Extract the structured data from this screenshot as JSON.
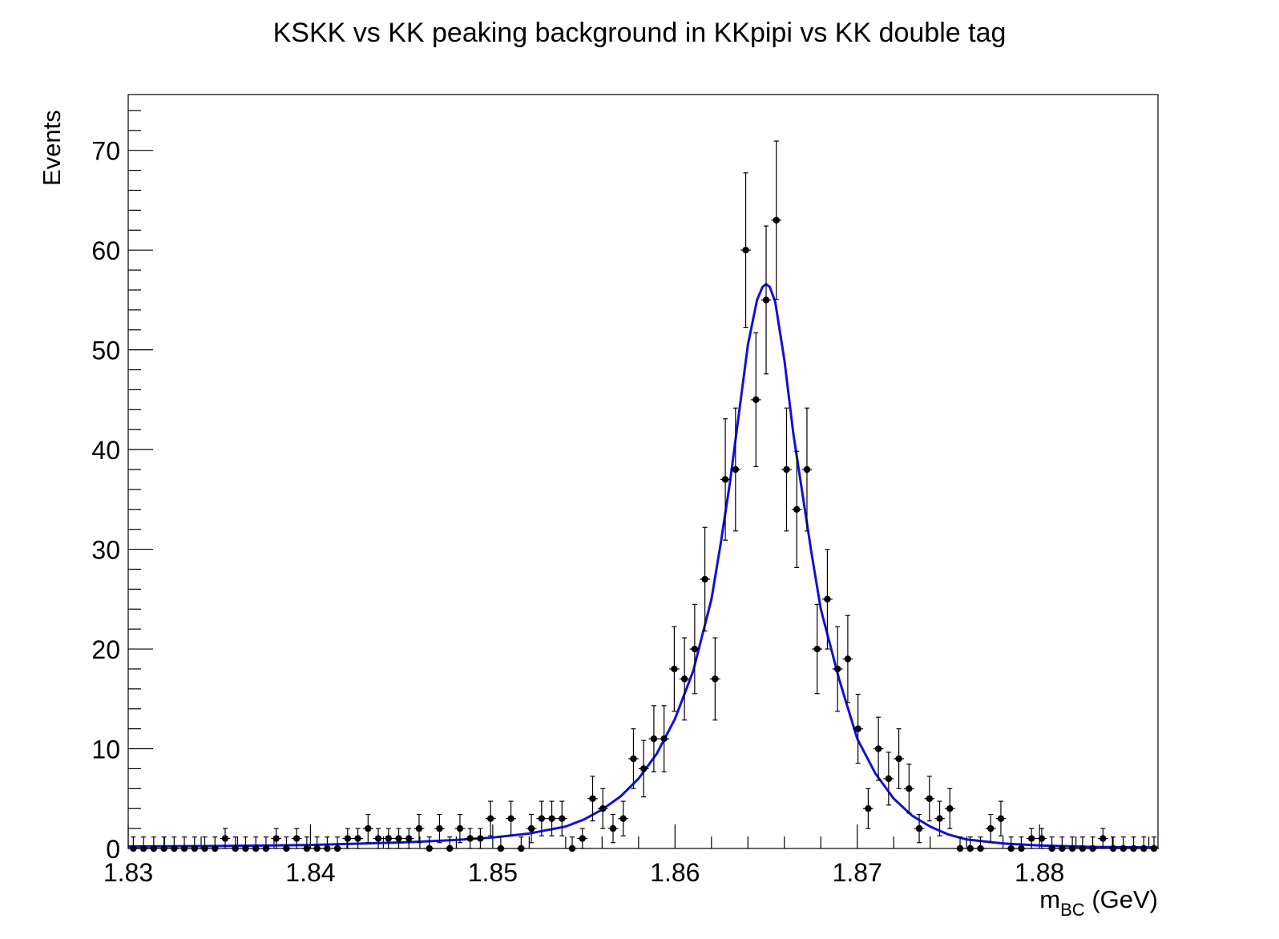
{
  "chart_data": {
    "type": "scatter",
    "title": "KSKK vs KK peaking background in KKpipi vs KK double tag",
    "xlabel": "m",
    "xlabel_subscript": "BC",
    "xlabel_unit": "(GeV)",
    "ylabel": "Events",
    "xlim": [
      1.83,
      1.8865
    ],
    "ylim": [
      0,
      75.6
    ],
    "x_ticks": [
      1.83,
      1.84,
      1.85,
      1.86,
      1.87,
      1.88
    ],
    "x_tick_labels": [
      "1.83",
      "1.84",
      "1.85",
      "1.86",
      "1.87",
      "1.88"
    ],
    "y_ticks": [
      0,
      10,
      20,
      30,
      40,
      50,
      60,
      70
    ],
    "y_tick_labels": [
      "0",
      "10",
      "20",
      "30",
      "40",
      "50",
      "60",
      "70"
    ],
    "bin_width": 0.00056,
    "grid": false,
    "legend": "none",
    "series": [
      {
        "kind": "data-points",
        "color": "#000000",
        "x": [
          1.83028,
          1.83084,
          1.8314,
          1.83196,
          1.83252,
          1.83308,
          1.83364,
          1.8342,
          1.83476,
          1.83532,
          1.83588,
          1.83644,
          1.837,
          1.83756,
          1.83812,
          1.83868,
          1.83924,
          1.8398,
          1.84036,
          1.84092,
          1.84148,
          1.84204,
          1.8426,
          1.84316,
          1.84372,
          1.84428,
          1.84484,
          1.8454,
          1.84596,
          1.84652,
          1.84708,
          1.84764,
          1.8482,
          1.84876,
          1.84932,
          1.84988,
          1.85044,
          1.851,
          1.85156,
          1.85212,
          1.85268,
          1.85324,
          1.8538,
          1.85436,
          1.85492,
          1.85548,
          1.85604,
          1.8566,
          1.85716,
          1.85772,
          1.85828,
          1.85884,
          1.8594,
          1.85996,
          1.86052,
          1.86108,
          1.86164,
          1.8622,
          1.86276,
          1.86332,
          1.86388,
          1.86444,
          1.865,
          1.86556,
          1.86612,
          1.86668,
          1.86724,
          1.8678,
          1.86836,
          1.86892,
          1.86948,
          1.87004,
          1.8706,
          1.87116,
          1.87172,
          1.87228,
          1.87284,
          1.8734,
          1.87396,
          1.87452,
          1.87508,
          1.87564,
          1.8762,
          1.87676,
          1.87732,
          1.87788,
          1.87844,
          1.879,
          1.87956,
          1.88012,
          1.88068,
          1.88124,
          1.8818,
          1.88236,
          1.88292,
          1.88348,
          1.88404,
          1.8846,
          1.88516,
          1.88572,
          1.88628
        ],
        "y": [
          0,
          0,
          0,
          0,
          0,
          0,
          0,
          0,
          0,
          1,
          0,
          0,
          0,
          0,
          1,
          0,
          1,
          0,
          0,
          0,
          0,
          1,
          1,
          2,
          1,
          1,
          1,
          1,
          2,
          0,
          2,
          0,
          2,
          1,
          1,
          3,
          0,
          3,
          0,
          2,
          3,
          3,
          3,
          0,
          1,
          5,
          4,
          2,
          3,
          9,
          8,
          11,
          11,
          18,
          17,
          20,
          27,
          17,
          37,
          38,
          60,
          45,
          55,
          63,
          38,
          34,
          38,
          20,
          25,
          18,
          19,
          12,
          4,
          10,
          7,
          9,
          6,
          2,
          5,
          3,
          4,
          0,
          0,
          0,
          2,
          3,
          0,
          0,
          1,
          1,
          0,
          0,
          0,
          0,
          0,
          1,
          0,
          0,
          0,
          0,
          0
        ]
      },
      {
        "kind": "fit-curve",
        "color": "#1010d8",
        "x": [
          1.83,
          1.835,
          1.84,
          1.845,
          1.848,
          1.85,
          1.852,
          1.854,
          1.855,
          1.856,
          1.857,
          1.858,
          1.859,
          1.86,
          1.861,
          1.862,
          1.8625,
          1.863,
          1.8635,
          1.864,
          1.8645,
          1.8648,
          1.865,
          1.8652,
          1.8655,
          1.866,
          1.8665,
          1.867,
          1.8675,
          1.868,
          1.869,
          1.87,
          1.871,
          1.872,
          1.873,
          1.874,
          1.875,
          1.876,
          1.878,
          1.88,
          1.883,
          1.8865
        ],
        "y": [
          0.2,
          0.25,
          0.35,
          0.6,
          0.85,
          1.1,
          1.5,
          2.2,
          2.9,
          3.9,
          5.2,
          7.0,
          9.5,
          13.0,
          17.8,
          25.0,
          30.5,
          36.5,
          43.5,
          50.5,
          55.0,
          56.3,
          56.6,
          56.3,
          54.8,
          49.0,
          41.5,
          35.5,
          29.5,
          24.0,
          17.0,
          11.0,
          7.5,
          5.0,
          3.3,
          2.2,
          1.4,
          0.9,
          0.5,
          0.3,
          0.15,
          0.1
        ]
      }
    ]
  }
}
